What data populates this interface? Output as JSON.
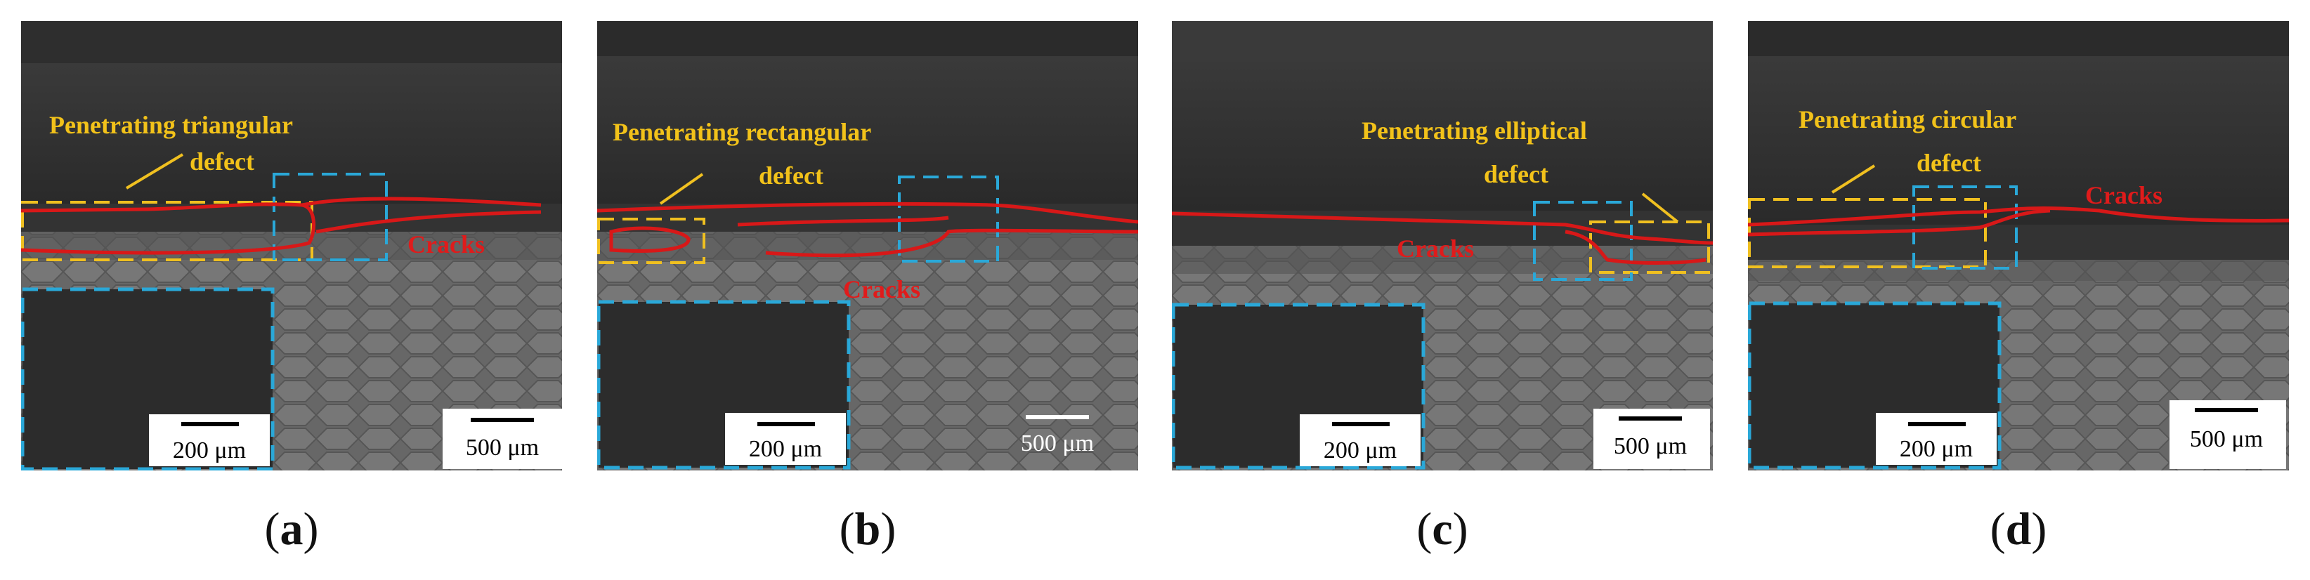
{
  "panels": [
    {
      "id": "a",
      "caption": "a",
      "defect_label_line1": "Penetrating triangular",
      "defect_label_line2": "defect",
      "cracks_label": "Cracks",
      "inset_scale": "200 μm",
      "main_scale": "500 μm"
    },
    {
      "id": "b",
      "caption": "b",
      "defect_label_line1": "Penetrating rectangular",
      "defect_label_line2": "defect",
      "cracks_label": "Cracks",
      "inset_scale": "200 μm",
      "main_scale": "500 μm"
    },
    {
      "id": "c",
      "caption": "c",
      "defect_label_line1": "Penetrating elliptical",
      "defect_label_line2": "defect",
      "cracks_label": "Cracks",
      "inset_scale": "200 μm",
      "main_scale": "500 μm"
    },
    {
      "id": "d",
      "caption": "d",
      "defect_label_line1": "Penetrating circular",
      "defect_label_line2": "defect",
      "cracks_label": "Cracks",
      "inset_scale": "200 μm",
      "main_scale": "500 μm"
    }
  ],
  "colors": {
    "defect_box": "#f0c020",
    "inset_box": "#2aa8d8",
    "crack_line": "#d81818",
    "label_yellow": "#f2c21a",
    "label_red": "#e01b1b"
  }
}
